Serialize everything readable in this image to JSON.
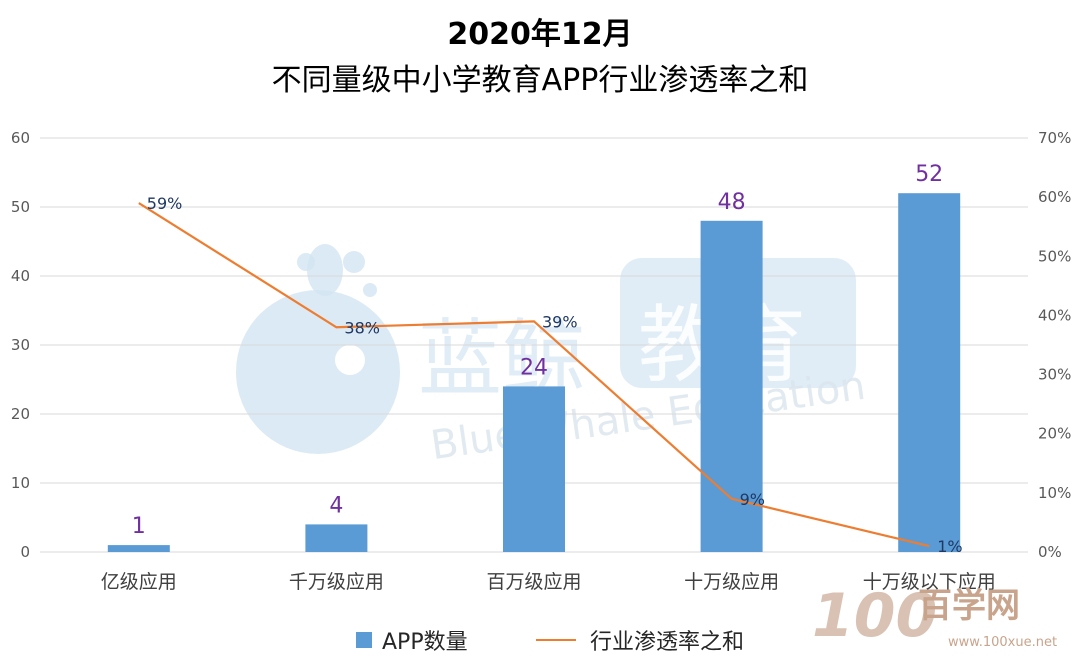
{
  "title_line1": "2020年12月",
  "title_line2": "不同量级中小学教育APP行业渗透率之和",
  "watermark": {
    "cn": "蓝鲸",
    "cn_box": "教育",
    "en": "Blue Whale Education",
    "site_cn": "百学网",
    "site_url": "www.100xue.net"
  },
  "colors": {
    "bar": "#5b9bd5",
    "line": "#ed7d31",
    "grid": "#d9d9d9",
    "value_label": "#7030a0"
  },
  "chart_data": {
    "type": "bar",
    "categories": [
      "亿级应用",
      "千万级应用",
      "百万级应用",
      "十万级应用",
      "十万级以下应用"
    ],
    "series": [
      {
        "name": "APP数量",
        "type": "bar",
        "axis": "left",
        "values": [
          1,
          4,
          24,
          48,
          52
        ],
        "labels": [
          "1",
          "4",
          "24",
          "48",
          "52"
        ]
      },
      {
        "name": "行业渗透率之和",
        "type": "line",
        "axis": "right",
        "values": [
          59,
          38,
          39,
          9,
          1
        ],
        "labels": [
          "59%",
          "38%",
          "39%",
          "9%",
          "1%"
        ]
      }
    ],
    "y_left": {
      "min": 0,
      "max": 60,
      "ticks": [
        "0",
        "10",
        "20",
        "30",
        "40",
        "50",
        "60"
      ]
    },
    "y_right": {
      "min": 0,
      "max": 70,
      "ticks": [
        "0%",
        "10%",
        "20%",
        "30%",
        "40%",
        "50%",
        "60%",
        "70%"
      ]
    },
    "grid": true,
    "legend_position": "bottom"
  }
}
